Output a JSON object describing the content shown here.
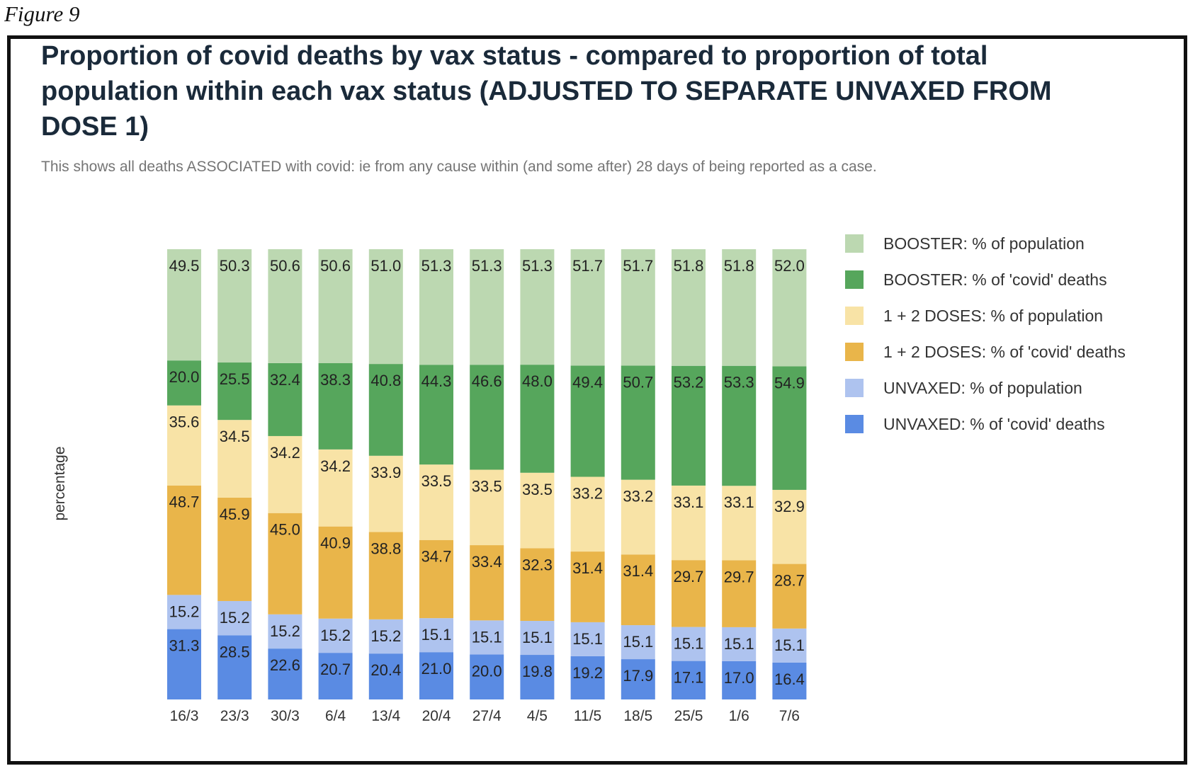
{
  "figure_label": "Figure 9",
  "chart_data": {
    "type": "bar",
    "stacked": true,
    "title": "Proportion of covid deaths by vax status - compared to proportion of total population within each vax status (ADJUSTED TO SEPARATE UNVAXED FROM DOSE 1)",
    "subtitle": "This shows all deaths ASSOCIATED with covid: ie from any cause within (and some after) 28 days of being reported as a case.",
    "xlabel": "",
    "ylabel": "percentage",
    "legend_position": "right",
    "grid": false,
    "categories": [
      "16/3",
      "23/3",
      "30/3",
      "6/4",
      "13/4",
      "20/4",
      "27/4",
      "4/5",
      "11/5",
      "18/5",
      "25/5",
      "1/6",
      "7/6"
    ],
    "series": [
      {
        "name": "UNVAXED: % of 'covid' deaths",
        "color": "#5a8be3",
        "values": [
          31.3,
          28.5,
          22.6,
          20.7,
          20.4,
          21.0,
          20.0,
          19.8,
          19.2,
          17.9,
          17.1,
          17.0,
          16.4
        ]
      },
      {
        "name": "UNVAXED: % of population",
        "color": "#aec3ef",
        "values": [
          15.2,
          15.2,
          15.2,
          15.2,
          15.2,
          15.1,
          15.1,
          15.1,
          15.1,
          15.1,
          15.1,
          15.1,
          15.1
        ]
      },
      {
        "name": "1 + 2 DOSES: % of 'covid' deaths",
        "color": "#e9b54a",
        "values": [
          48.7,
          45.9,
          45.0,
          40.9,
          38.8,
          34.7,
          33.4,
          32.3,
          31.4,
          31.4,
          29.7,
          29.7,
          28.7
        ]
      },
      {
        "name": "1 + 2 DOSES: % of population",
        "color": "#f8e3a6",
        "values": [
          35.6,
          34.5,
          34.2,
          34.2,
          33.9,
          33.5,
          33.5,
          33.5,
          33.2,
          33.2,
          33.1,
          33.1,
          32.9
        ]
      },
      {
        "name": "BOOSTER: % of 'covid' deaths",
        "color": "#56a65c",
        "values": [
          20.0,
          25.5,
          32.4,
          38.3,
          40.8,
          44.3,
          46.6,
          48.0,
          49.4,
          50.7,
          53.2,
          53.3,
          54.9
        ]
      },
      {
        "name": "BOOSTER: % of population",
        "color": "#bcd8b1",
        "values": [
          49.5,
          50.3,
          50.6,
          50.6,
          51.0,
          51.3,
          51.3,
          51.3,
          51.7,
          51.7,
          51.8,
          51.8,
          52.0
        ]
      }
    ],
    "legend_order": [
      5,
      4,
      3,
      2,
      1,
      0
    ]
  }
}
